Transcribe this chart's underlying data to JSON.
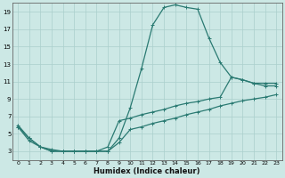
{
  "xlabel": "Humidex (Indice chaleur)",
  "ylabel": "",
  "bg_color": "#cce8e5",
  "grid_color": "#aacfcc",
  "line_color": "#2a7a72",
  "xlim": [
    -0.5,
    23.5
  ],
  "ylim": [
    2,
    20
  ],
  "xticks": [
    0,
    1,
    2,
    3,
    4,
    5,
    6,
    7,
    8,
    9,
    10,
    11,
    12,
    13,
    14,
    15,
    16,
    17,
    18,
    19,
    20,
    21,
    22,
    23
  ],
  "yticks": [
    3,
    5,
    7,
    9,
    11,
    13,
    15,
    17,
    19
  ],
  "series1_x": [
    0,
    1,
    2,
    3,
    4,
    5,
    6,
    7,
    8,
    9,
    10,
    11,
    12,
    13,
    14,
    15,
    16,
    17,
    18,
    19,
    20,
    21,
    22,
    23
  ],
  "series1_y": [
    6,
    4.5,
    3.5,
    3,
    3,
    3,
    3,
    3,
    3,
    4.5,
    8,
    12.5,
    17.5,
    19.5,
    19.8,
    19.5,
    19.3,
    16,
    13.2,
    11.5,
    11.2,
    10.8,
    10.8,
    10.8
  ],
  "series2_x": [
    0,
    1,
    2,
    3,
    4,
    5,
    6,
    7,
    8,
    9,
    10,
    11,
    12,
    13,
    14,
    15,
    16,
    17,
    18,
    19,
    20,
    21,
    22,
    23
  ],
  "series2_y": [
    5.8,
    4.5,
    3.5,
    3.2,
    3,
    3,
    3,
    3,
    3.5,
    6.5,
    6.8,
    7.2,
    7.5,
    7.8,
    8.2,
    8.5,
    8.7,
    9.0,
    9.2,
    11.5,
    11.2,
    10.8,
    10.5,
    10.5
  ],
  "series3_x": [
    0,
    1,
    2,
    3,
    4,
    5,
    6,
    7,
    8,
    9,
    10,
    11,
    12,
    13,
    14,
    15,
    16,
    17,
    18,
    19,
    20,
    21,
    22,
    23
  ],
  "series3_y": [
    5.8,
    4.2,
    3.5,
    3,
    3,
    3,
    3,
    3,
    3,
    4,
    5.5,
    5.8,
    6.2,
    6.5,
    6.8,
    7.2,
    7.5,
    7.8,
    8.2,
    8.5,
    8.8,
    9.0,
    9.2,
    9.5
  ]
}
